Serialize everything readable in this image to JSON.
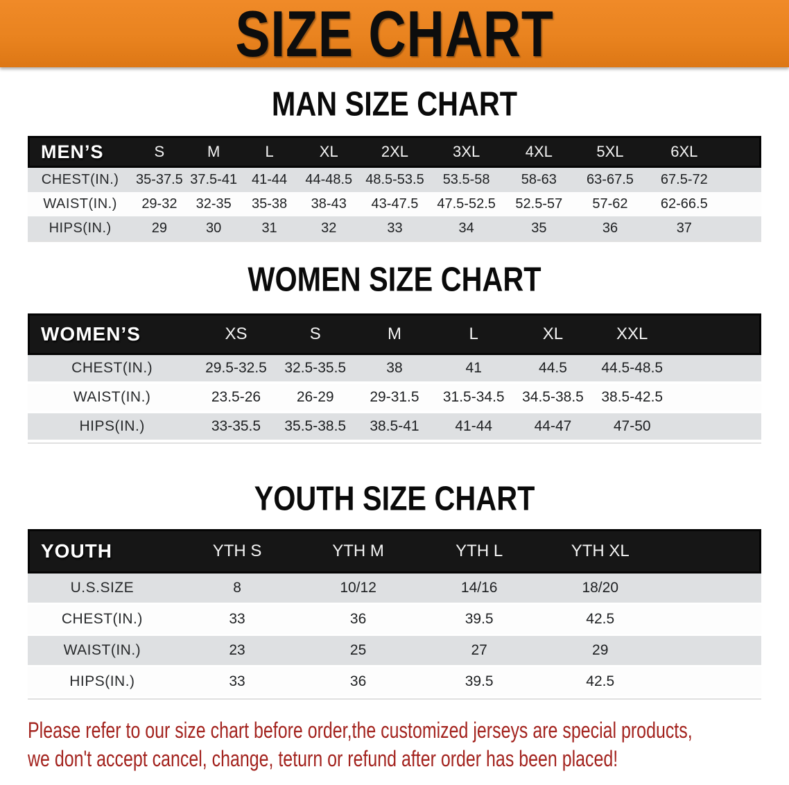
{
  "banner": {
    "title": "SIZE CHART"
  },
  "sections": [
    {
      "heading": "MAN SIZE CHART",
      "label": "MEN’S",
      "columns": [
        "S",
        "M",
        "L",
        "XL",
        "2XL",
        "3XL",
        "4XL",
        "5XL",
        "6XL"
      ],
      "rows": [
        {
          "label": "CHEST(IN.)",
          "values": [
            "35-37.5",
            "37.5-41",
            "41-44",
            "44-48.5",
            "48.5-53.5",
            "53.5-58",
            "58-63",
            "63-67.5",
            "67.5-72"
          ]
        },
        {
          "label": "WAIST(IN.)",
          "values": [
            "29-32",
            "32-35",
            "35-38",
            "38-43",
            "43-47.5",
            "47.5-52.5",
            "52.5-57",
            "57-62",
            "62-66.5"
          ]
        },
        {
          "label": "HIPS(IN.)",
          "values": [
            "29",
            "30",
            "31",
            "32",
            "33",
            "34",
            "35",
            "36",
            "37"
          ]
        }
      ]
    },
    {
      "heading": "WOMEN SIZE CHART",
      "label": "WOMEN’S",
      "columns": [
        "XS",
        "S",
        "M",
        "L",
        "XL",
        "XXL"
      ],
      "rows": [
        {
          "label": "CHEST(IN.)",
          "values": [
            "29.5-32.5",
            "32.5-35.5",
            "38",
            "41",
            "44.5",
            "44.5-48.5"
          ]
        },
        {
          "label": "WAIST(IN.)",
          "values": [
            "23.5-26",
            "26-29",
            "29-31.5",
            "31.5-34.5",
            "34.5-38.5",
            "38.5-42.5"
          ]
        },
        {
          "label": "HIPS(IN.)",
          "values": [
            "33-35.5",
            "35.5-38.5",
            "38.5-41",
            "41-44",
            "44-47",
            "47-50"
          ]
        }
      ]
    },
    {
      "heading": "YOUTH SIZE CHART",
      "label": "YOUTH",
      "columns": [
        "YTH S",
        "YTH M",
        "YTH L",
        "YTH XL"
      ],
      "rows": [
        {
          "label": "U.S.SIZE",
          "values": [
            "8",
            "10/12",
            "14/16",
            "18/20"
          ]
        },
        {
          "label": "CHEST(IN.)",
          "values": [
            "33",
            "36",
            "39.5",
            "42.5"
          ]
        },
        {
          "label": "WAIST(IN.)",
          "values": [
            "23",
            "25",
            "27",
            "29"
          ]
        },
        {
          "label": "HIPS(IN.)",
          "values": [
            "33",
            "36",
            "39.5",
            "42.5"
          ]
        }
      ]
    }
  ],
  "disclaimer": {
    "line1": "Please refer to our size chart before order,the customized jerseys are special products,",
    "line2": "we don't accept cancel, change, teturn or refund after order has been placed!"
  },
  "colors": {
    "banner_bg": "#E9831F",
    "banner_text": "#0D0D0D",
    "header_bar": "#161616",
    "row_alt_gray": "#DEE0E2",
    "disclaimer_red": "#A3231E"
  }
}
